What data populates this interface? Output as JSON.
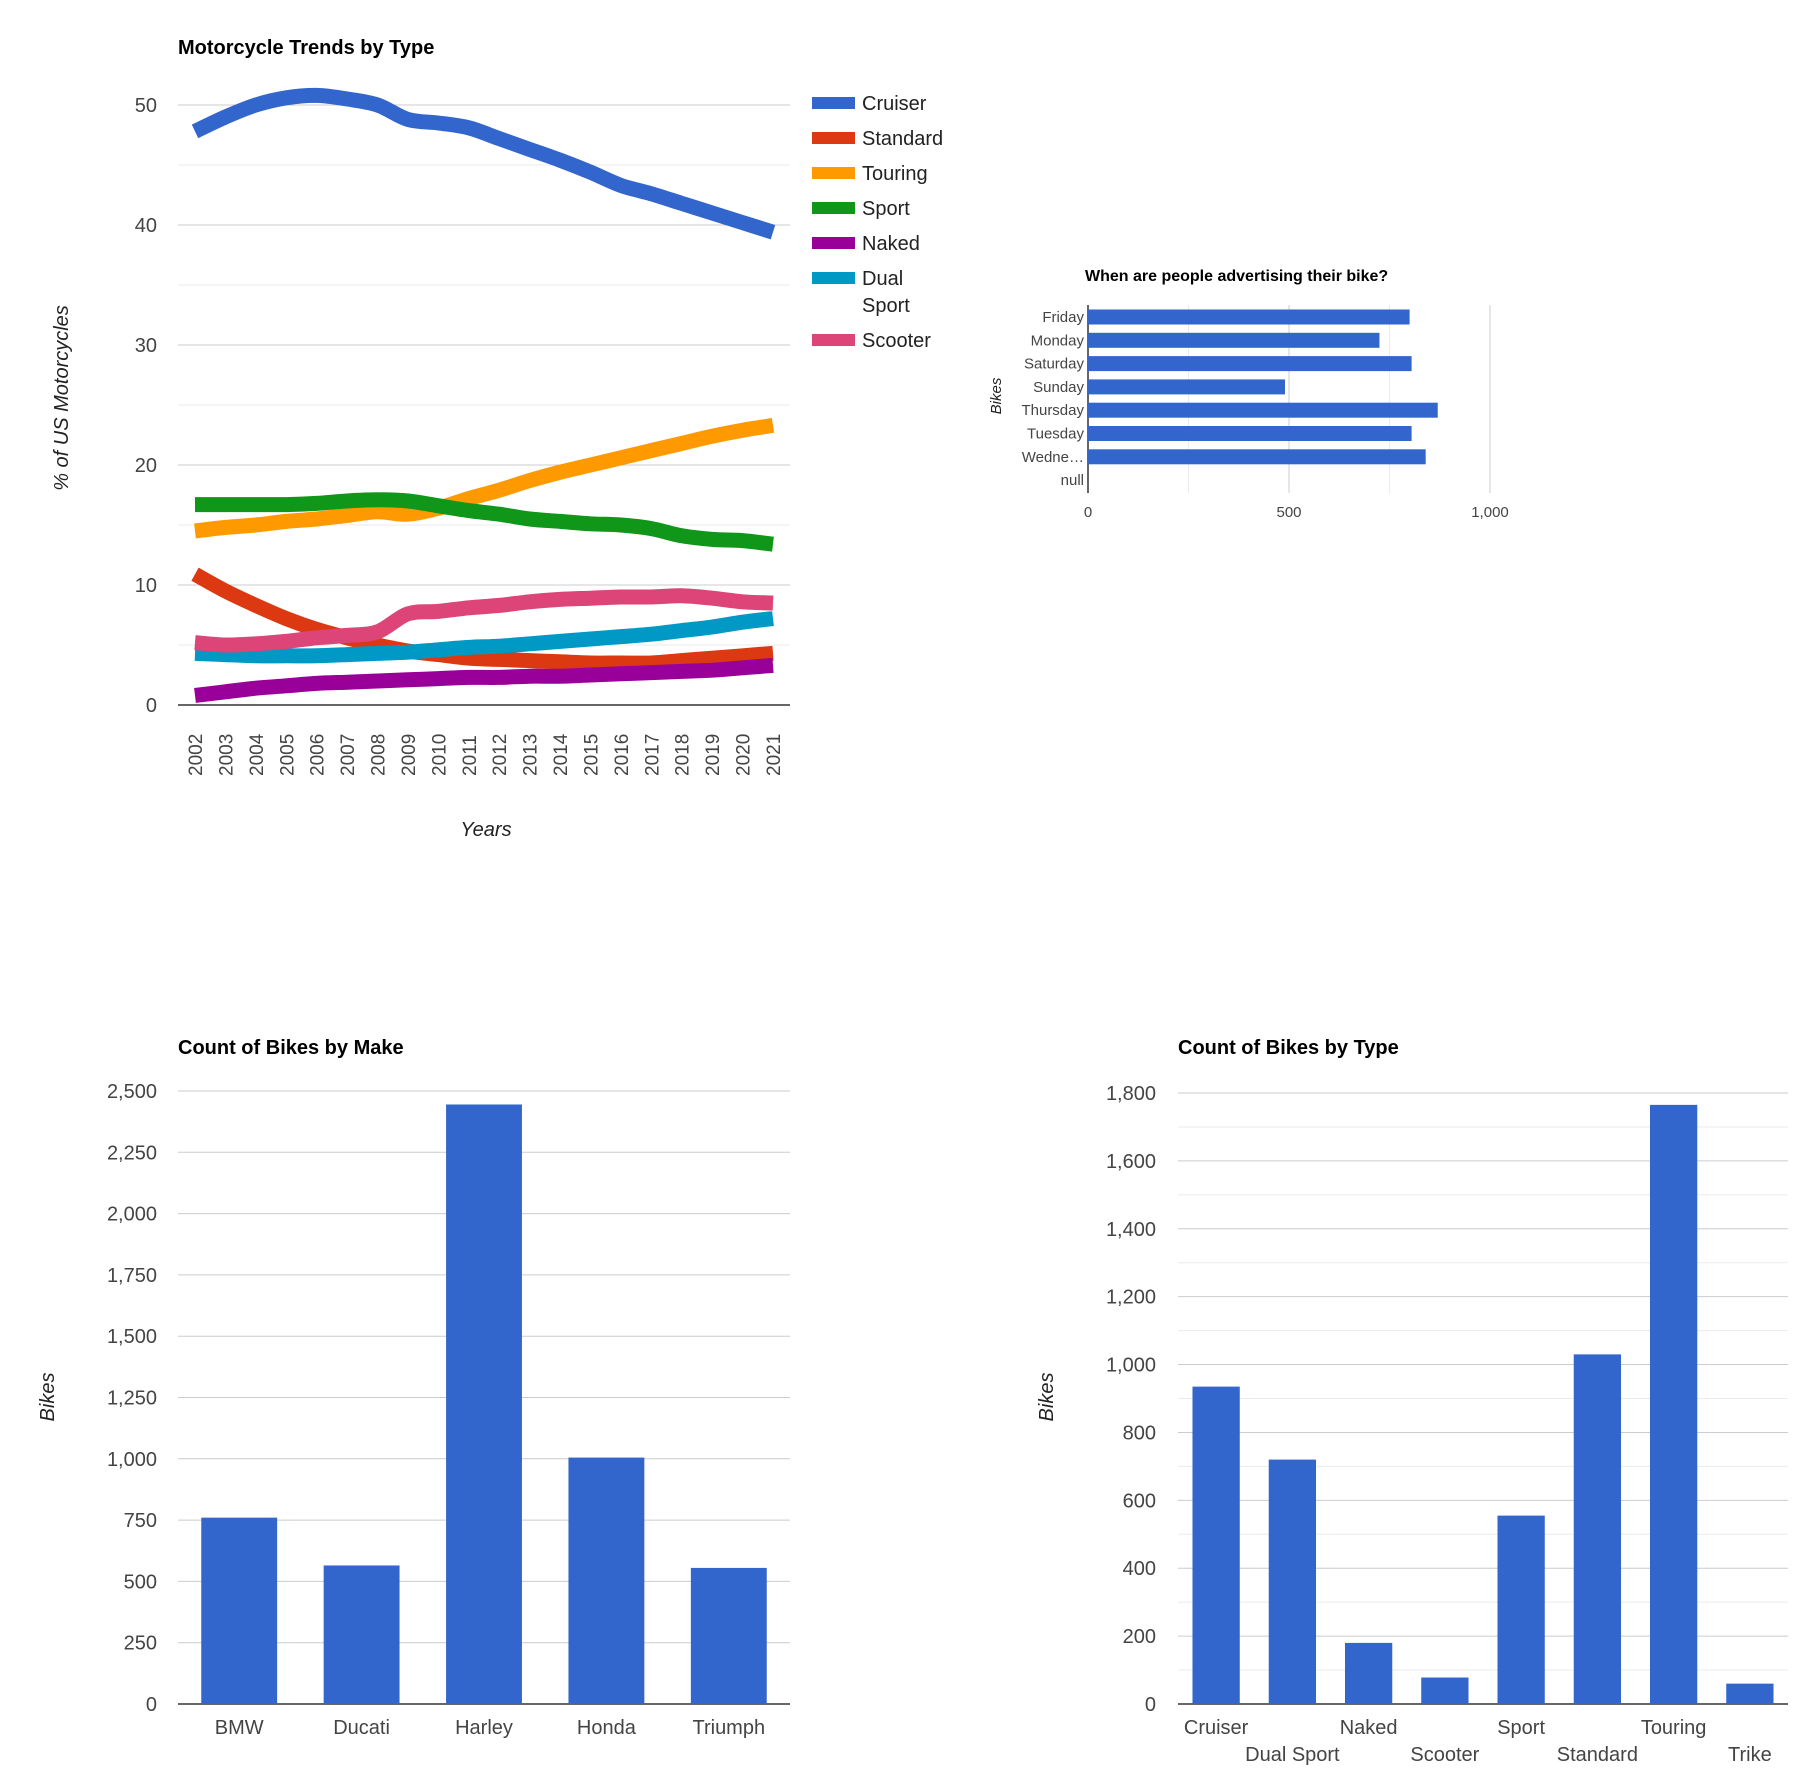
{
  "colors": {
    "bar": "#3366cc",
    "grid": "#cccccc",
    "minor_grid": "#ebebeb",
    "axis": "#333333"
  },
  "chart_data": [
    {
      "id": "trends",
      "type": "line",
      "title": "Motorcycle Trends by Type",
      "xlabel": "Years",
      "ylabel": "% of US Motorcycles",
      "x": [
        2002,
        2003,
        2004,
        2005,
        2006,
        2007,
        2008,
        2009,
        2010,
        2011,
        2012,
        2013,
        2014,
        2015,
        2016,
        2017,
        2018,
        2019,
        2020,
        2021
      ],
      "ylim": [
        0,
        50
      ],
      "yticks": [
        0,
        10,
        20,
        30,
        40,
        50
      ],
      "grid": true,
      "legend": "right",
      "series": [
        {
          "name": "Cruiser",
          "color": "#3366cc",
          "values": [
            47.8,
            49.0,
            50.0,
            50.6,
            50.8,
            50.5,
            50.0,
            48.8,
            48.5,
            48.1,
            47.2,
            46.3,
            45.4,
            44.4,
            43.3,
            42.6,
            41.8,
            41.0,
            40.2,
            39.4
          ]
        },
        {
          "name": "Standard",
          "color": "#dc3912",
          "values": [
            10.9,
            9.5,
            8.3,
            7.2,
            6.3,
            5.6,
            5.0,
            4.5,
            4.2,
            3.9,
            3.8,
            3.7,
            3.6,
            3.5,
            3.5,
            3.5,
            3.7,
            3.9,
            4.1,
            4.3
          ]
        },
        {
          "name": "Touring",
          "color": "#ff9900",
          "values": [
            14.5,
            14.8,
            15.0,
            15.3,
            15.5,
            15.8,
            16.1,
            15.9,
            16.4,
            17.2,
            17.9,
            18.7,
            19.4,
            20.0,
            20.6,
            21.2,
            21.8,
            22.4,
            22.9,
            23.3
          ]
        },
        {
          "name": "Sport",
          "color": "#109618",
          "values": [
            16.7,
            16.7,
            16.7,
            16.7,
            16.8,
            17.0,
            17.1,
            17.0,
            16.6,
            16.2,
            15.9,
            15.5,
            15.3,
            15.1,
            15.0,
            14.7,
            14.1,
            13.8,
            13.7,
            13.4
          ]
        },
        {
          "name": "Naked",
          "color": "#990099",
          "values": [
            0.8,
            1.1,
            1.4,
            1.6,
            1.8,
            1.9,
            2.0,
            2.1,
            2.2,
            2.3,
            2.3,
            2.4,
            2.4,
            2.5,
            2.6,
            2.7,
            2.8,
            2.9,
            3.1,
            3.3
          ]
        },
        {
          "name": "Dual Sport",
          "color": "#0099c6",
          "values": [
            4.3,
            4.2,
            4.1,
            4.1,
            4.1,
            4.2,
            4.3,
            4.4,
            4.6,
            4.8,
            4.9,
            5.1,
            5.3,
            5.5,
            5.7,
            5.9,
            6.2,
            6.5,
            6.9,
            7.2
          ]
        },
        {
          "name": "Scooter",
          "color": "#dd4477",
          "values": [
            5.2,
            5.0,
            5.1,
            5.3,
            5.6,
            5.8,
            6.1,
            7.6,
            7.8,
            8.1,
            8.3,
            8.6,
            8.8,
            8.9,
            9.0,
            9.0,
            9.1,
            8.9,
            8.6,
            8.5
          ]
        }
      ]
    },
    {
      "id": "weekday",
      "type": "bar",
      "orientation": "horizontal",
      "title": "When are people advertising their bike?",
      "ylabel": "Bikes",
      "categories": [
        "Friday",
        "Monday",
        "Saturday",
        "Sunday",
        "Thursday",
        "Tuesday",
        "Wedne…",
        "null"
      ],
      "values": [
        800,
        725,
        805,
        490,
        870,
        805,
        840,
        0
      ],
      "xlim": [
        0,
        1000
      ],
      "xticks": [
        0,
        500,
        1000
      ],
      "xtick_labels": [
        "0",
        "500",
        "1,000"
      ],
      "grid": true,
      "legend": "none"
    },
    {
      "id": "make",
      "type": "bar",
      "title": "Count of Bikes by Make",
      "ylabel": "Bikes",
      "categories": [
        "BMW",
        "Ducati",
        "Harley",
        "Honda",
        "Triumph"
      ],
      "values": [
        760,
        565,
        2445,
        1005,
        555
      ],
      "ylim": [
        0,
        2500
      ],
      "yticks": [
        0,
        250,
        500,
        750,
        1000,
        1250,
        1500,
        1750,
        2000,
        2250,
        2500
      ],
      "ytick_labels": [
        "0",
        "250",
        "500",
        "750",
        "1,000",
        "1,250",
        "1,500",
        "1,750",
        "2,000",
        "2,250",
        "2,500"
      ],
      "grid": true,
      "legend": "none"
    },
    {
      "id": "type",
      "type": "bar",
      "title": "Count of Bikes by Type",
      "ylabel": "Bikes",
      "categories": [
        "Cruiser",
        "Dual Sport",
        "Naked",
        "Scooter",
        "Sport",
        "Standard",
        "Touring",
        "Trike"
      ],
      "values": [
        935,
        720,
        180,
        78,
        555,
        1030,
        1765,
        60
      ],
      "ylim": [
        0,
        1800
      ],
      "yticks": [
        0,
        200,
        400,
        600,
        800,
        1000,
        1200,
        1400,
        1600,
        1800
      ],
      "ytick_labels": [
        "0",
        "200",
        "400",
        "600",
        "800",
        "1,000",
        "1,200",
        "1,400",
        "1,600",
        "1,800"
      ],
      "grid": true,
      "legend": "none"
    }
  ]
}
